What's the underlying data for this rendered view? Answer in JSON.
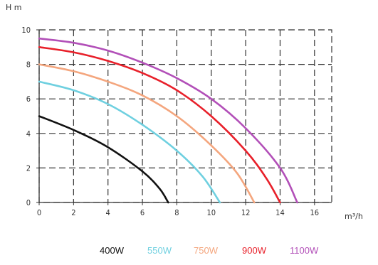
{
  "chart_data": {
    "type": "line",
    "ylabel": "H m",
    "xlabel": "m³/h",
    "xlim": [
      0,
      17
    ],
    "ylim": [
      0,
      10
    ],
    "x_ticks": [
      "0",
      "2",
      "4",
      "6",
      "8",
      "10",
      "12",
      "14",
      "16"
    ],
    "y_ticks": [
      "0",
      "2",
      "4",
      "6",
      "8",
      "10"
    ],
    "grid": true,
    "legend_position": "bottom",
    "series": [
      {
        "name": "400W",
        "color": "#111111",
        "x": [
          0,
          2,
          4,
          6,
          7,
          7.5
        ],
        "y": [
          5.0,
          4.2,
          3.2,
          1.8,
          0.8,
          0
        ]
      },
      {
        "name": "550W",
        "color": "#6fd0e0",
        "x": [
          0,
          2,
          4,
          6,
          8,
          9.5,
          10.5
        ],
        "y": [
          7.0,
          6.5,
          5.7,
          4.5,
          3.0,
          1.5,
          0
        ]
      },
      {
        "name": "750W",
        "color": "#f4a67e",
        "x": [
          0,
          2,
          4,
          6,
          8,
          10,
          11.5,
          12.5
        ],
        "y": [
          8.0,
          7.6,
          7.0,
          6.2,
          5.0,
          3.3,
          1.7,
          0
        ]
      },
      {
        "name": "900W",
        "color": "#e8202a",
        "x": [
          0,
          2,
          4,
          6,
          8,
          10,
          12,
          13.2,
          14
        ],
        "y": [
          9.0,
          8.7,
          8.2,
          7.5,
          6.5,
          5.0,
          3.0,
          1.4,
          0
        ]
      },
      {
        "name": "1100W",
        "color": "#b24fb8",
        "x": [
          0,
          2,
          4,
          6,
          8,
          10,
          12,
          14,
          15
        ],
        "y": [
          9.5,
          9.25,
          8.8,
          8.1,
          7.2,
          6.0,
          4.3,
          2.0,
          0
        ]
      }
    ]
  }
}
